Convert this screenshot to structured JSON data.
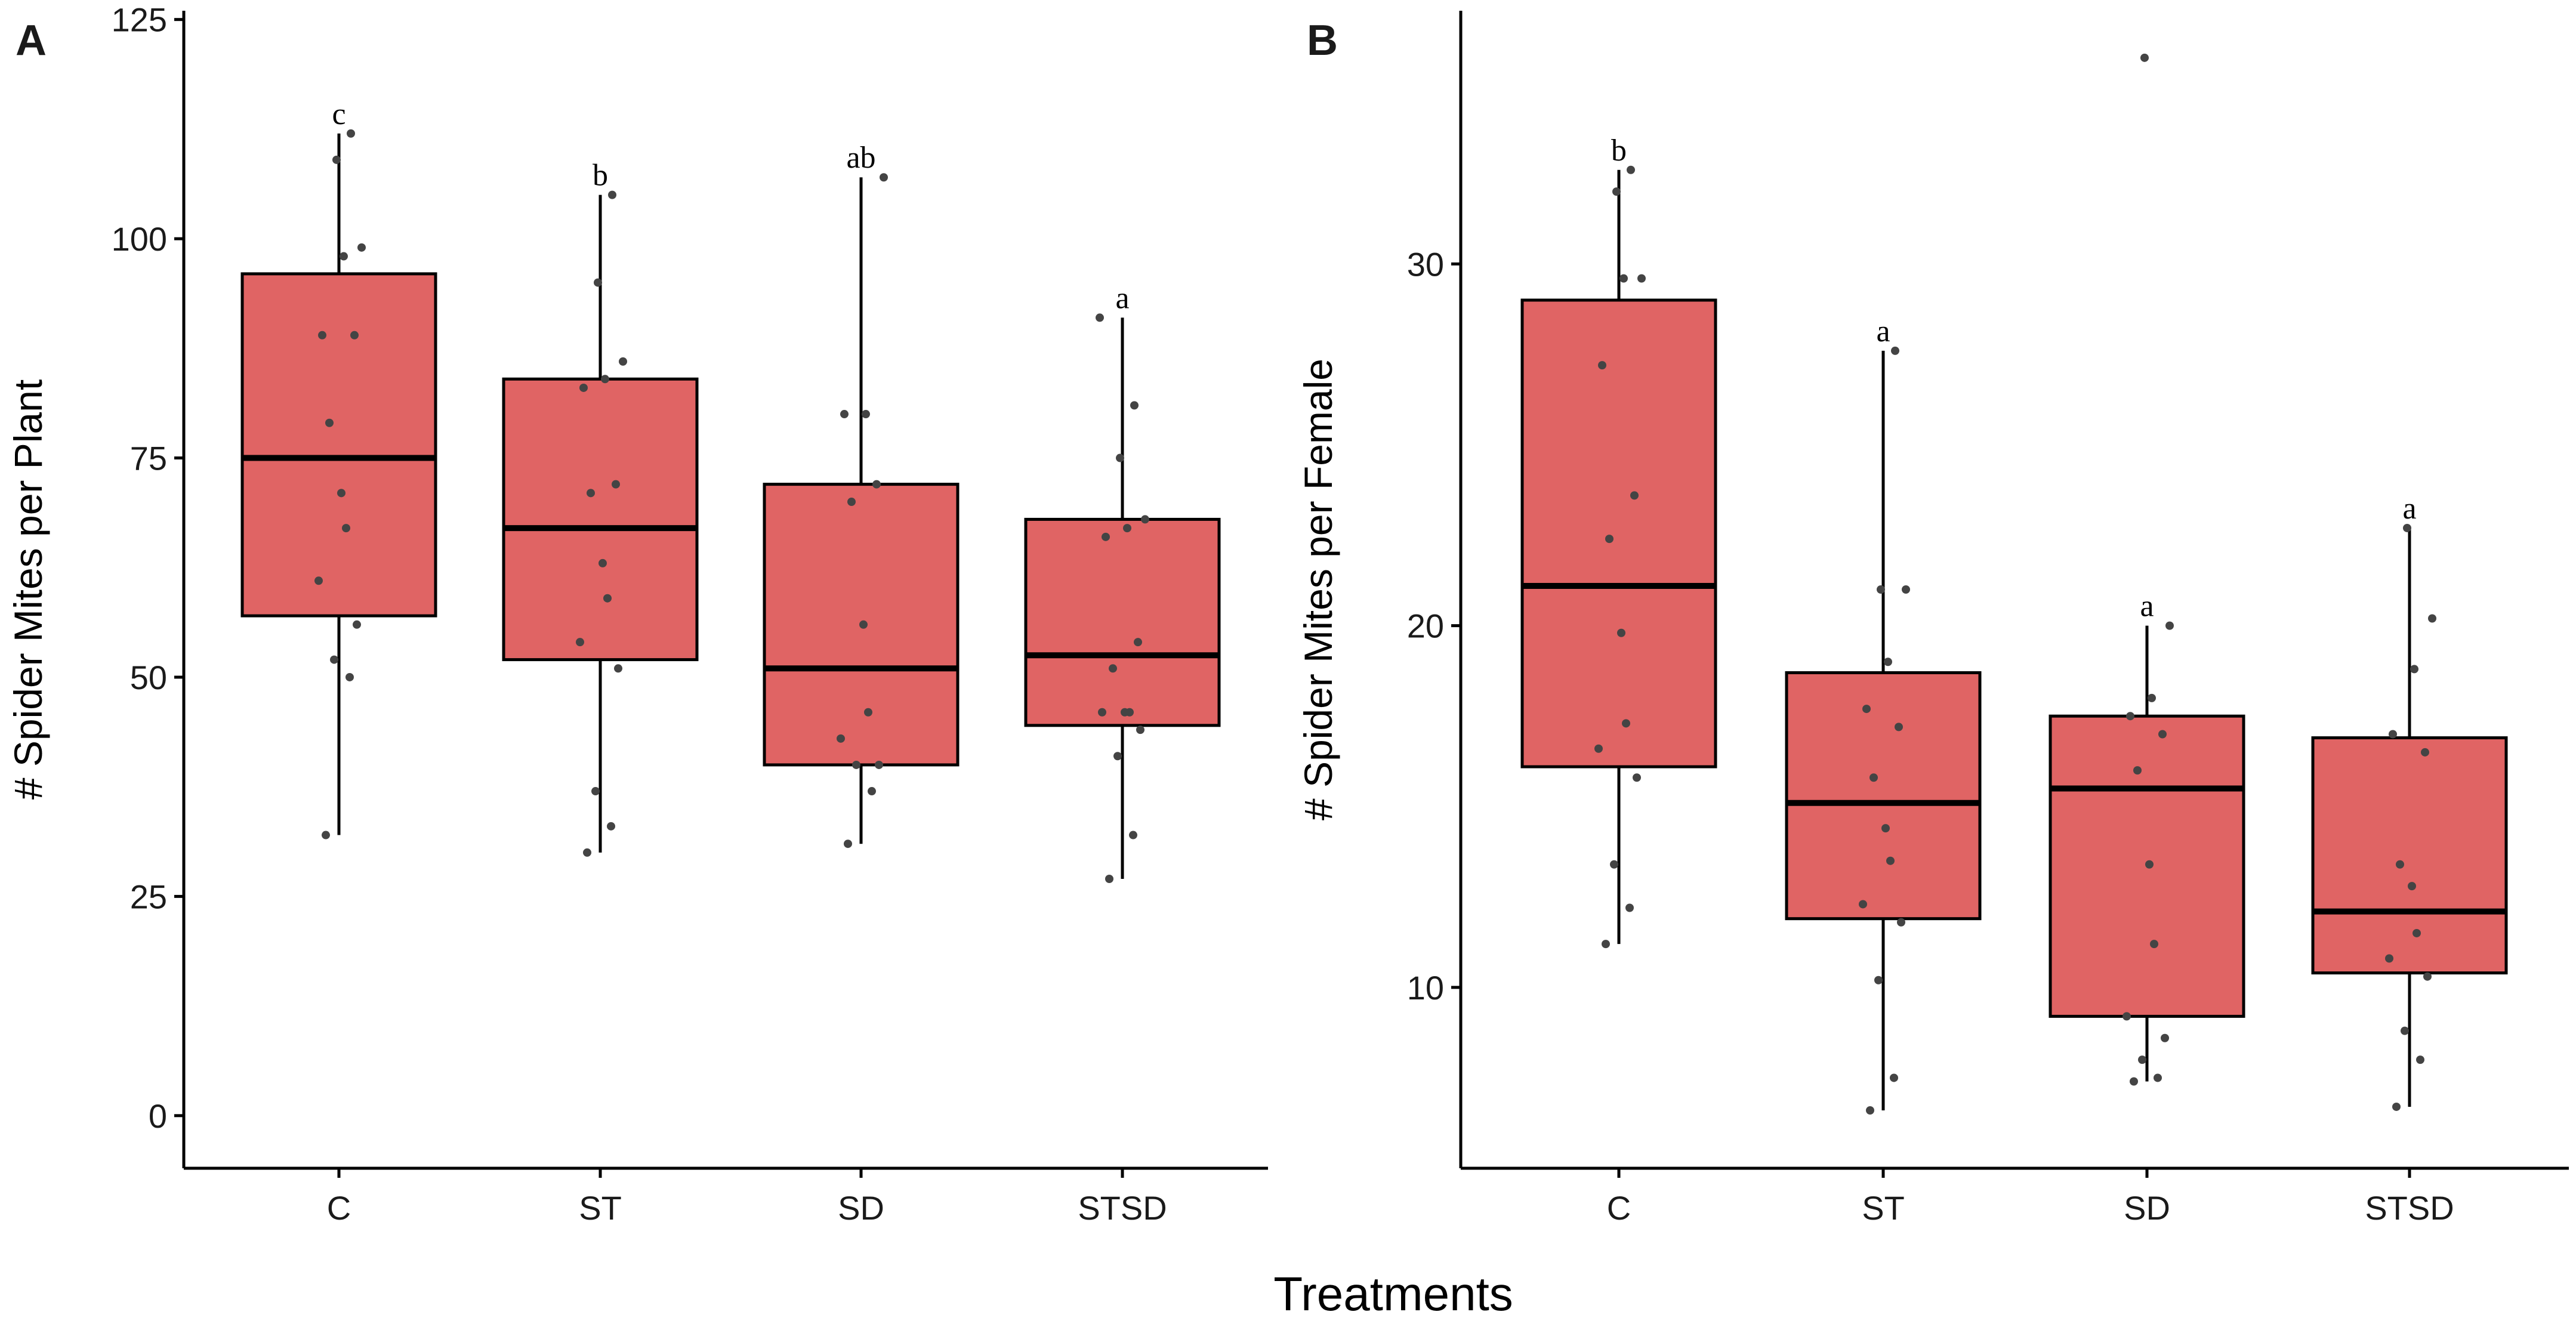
{
  "figure": {
    "x_title": "Treatments",
    "box_color": "#e06464",
    "point_color": "#444444"
  },
  "chart_data": [
    {
      "type": "box",
      "panel_label": "A",
      "ylabel": "# Spider Mites per Plant",
      "ylim": [
        -6,
        126
      ],
      "yticks": [
        0,
        25,
        50,
        75,
        100,
        125
      ],
      "categories": [
        "C",
        "ST",
        "SD",
        "STSD"
      ],
      "boxes": [
        {
          "category": "C",
          "whisker_low": 32,
          "q1": 57,
          "median": 75,
          "q3": 96,
          "whisker_high": 112,
          "letter": "c",
          "points": [
            32,
            50,
            52,
            56,
            61,
            67,
            71,
            79,
            89,
            89,
            98,
            99,
            109,
            112
          ]
        },
        {
          "category": "ST",
          "whisker_low": 30,
          "q1": 52,
          "median": 67,
          "q3": 84,
          "whisker_high": 105,
          "letter": "b",
          "points": [
            30,
            33,
            37,
            51,
            54,
            59,
            63,
            71,
            72,
            83,
            84,
            86,
            95,
            105
          ]
        },
        {
          "category": "SD",
          "whisker_low": 31,
          "q1": 40,
          "median": 51,
          "q3": 72,
          "whisker_high": 107,
          "letter": "ab",
          "points": [
            31,
            37,
            40,
            40,
            43,
            46,
            56,
            70,
            72,
            80,
            80,
            107
          ]
        },
        {
          "category": "STSD",
          "whisker_low": 27,
          "q1": 44.5,
          "median": 52.5,
          "q3": 68,
          "whisker_high": 91,
          "letter": "a",
          "points": [
            27,
            32,
            41,
            44,
            46,
            46,
            46,
            51,
            54,
            66,
            67,
            68,
            75,
            81,
            91
          ]
        }
      ]
    },
    {
      "type": "box",
      "panel_label": "B",
      "ylabel": "# Spider Mites per Female",
      "ylim": [
        5,
        37
      ],
      "yticks": [
        10,
        20,
        30
      ],
      "categories": [
        "C",
        "ST",
        "SD",
        "STSD"
      ],
      "boxes": [
        {
          "category": "C",
          "whisker_low": 11.2,
          "q1": 16.1,
          "median": 21.1,
          "q3": 29.0,
          "whisker_high": 32.6,
          "letter": "b",
          "points": [
            11.2,
            12.2,
            13.4,
            15.8,
            16.6,
            17.3,
            19.8,
            22.4,
            23.6,
            27.2,
            29.6,
            29.6,
            32.0,
            32.6
          ]
        },
        {
          "category": "ST",
          "whisker_low": 6.6,
          "q1": 11.9,
          "median": 15.1,
          "q3": 18.7,
          "whisker_high": 27.6,
          "letter": "a",
          "points": [
            6.6,
            7.5,
            10.2,
            11.8,
            12.3,
            13.5,
            14.4,
            15.8,
            17.2,
            17.7,
            19.0,
            21.0,
            21.0,
            27.6
          ]
        },
        {
          "category": "SD",
          "whisker_low": 7.4,
          "q1": 9.2,
          "median": 15.5,
          "q3": 17.5,
          "whisker_high": 20.0,
          "letter": "a",
          "points": [
            7.4,
            7.5,
            8.0,
            8.6,
            9.2,
            11.2,
            13.4,
            16.0,
            17.0,
            17.5,
            18.0,
            20.0,
            35.7
          ]
        },
        {
          "category": "STSD",
          "whisker_low": 6.7,
          "q1": 10.4,
          "median": 12.1,
          "q3": 16.9,
          "whisker_high": 22.7,
          "letter": "a",
          "points": [
            6.7,
            8.0,
            8.8,
            10.3,
            10.8,
            11.5,
            12.8,
            13.4,
            16.5,
            17.0,
            18.8,
            20.2,
            22.7
          ]
        }
      ]
    }
  ]
}
